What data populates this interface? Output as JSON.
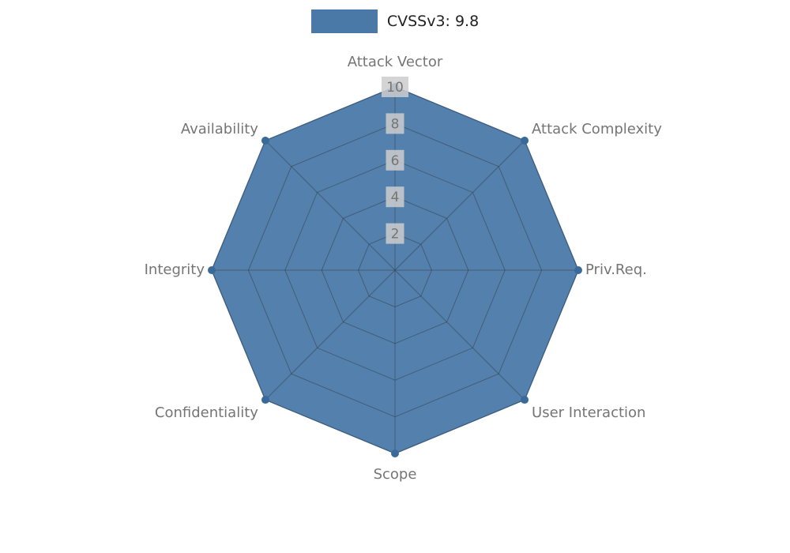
{
  "legend": {
    "label": "CVSSv3: 9.8"
  },
  "chart_data": {
    "type": "radar",
    "title": "CVSSv3: 9.8",
    "categories": [
      "Attack Vector",
      "Attack Complexity",
      "Priv.Req.",
      "User Interaction",
      "Scope",
      "Confidentiality",
      "Integrity",
      "Availability"
    ],
    "series": [
      {
        "name": "CVSSv3: 9.8",
        "values": [
          10,
          10,
          10,
          10,
          10,
          10,
          10,
          10
        ]
      }
    ],
    "ticks": [
      2,
      4,
      6,
      8,
      10
    ],
    "range": [
      0,
      10
    ],
    "grid": true,
    "legend_position": "top-center",
    "colors": {
      "series_fill": "#4a79a8",
      "series_stroke": "#4a79a8",
      "dot": "#3a6a99",
      "grid": "#333333",
      "tick_text": "#757575",
      "tick_bg": "#cccccc",
      "axis_label": "#757575",
      "legend_text": "#222222"
    }
  }
}
